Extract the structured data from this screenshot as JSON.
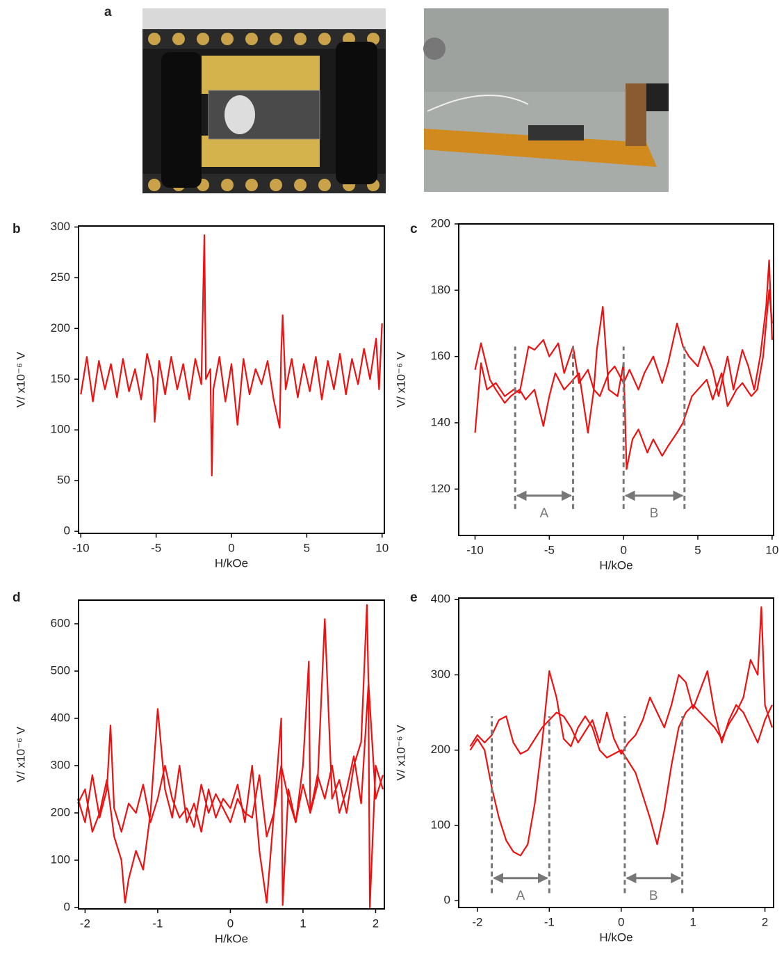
{
  "photos": {
    "label": "a"
  },
  "chart_data": [
    {
      "type": "line",
      "panel": "b",
      "xlabel": "H/kOe",
      "ylabel": "V/ x10⁻⁶ V",
      "xlim": [
        -10.15,
        10.15
      ],
      "ylim": [
        -2,
        301
      ],
      "xticks": [
        -10,
        -5,
        0,
        5,
        10
      ],
      "yticks": [
        0,
        50,
        100,
        150,
        200,
        250,
        300
      ],
      "series": [
        {
          "color": "#ee1111",
          "x": [
            -10,
            -9.6,
            -9.2,
            -8.8,
            -8.4,
            -8,
            -7.6,
            -7.2,
            -6.8,
            -6.4,
            -6,
            -5.6,
            -5.2,
            -5.1,
            -4.8,
            -4.4,
            -4,
            -3.6,
            -3.2,
            -2.8,
            -2.4,
            -2,
            -1.8,
            -1.7,
            -1.4,
            -1.3,
            -1.2,
            -0.8,
            -0.4,
            0,
            0.4,
            0.8,
            1.2,
            1.6,
            2,
            2.4,
            2.8,
            3.2,
            3.3,
            3.4,
            3.6,
            4,
            4.4,
            4.8,
            5.2,
            5.6,
            6,
            6.4,
            6.8,
            7.2,
            7.6,
            8,
            8.4,
            8.8,
            9.2,
            9.6,
            9.8,
            10
          ],
          "values": [
            135,
            172,
            128,
            168,
            140,
            165,
            132,
            170,
            138,
            160,
            130,
            175,
            150,
            108,
            168,
            135,
            172,
            140,
            165,
            130,
            170,
            145,
            292,
            150,
            160,
            55,
            140,
            172,
            128,
            165,
            105,
            170,
            135,
            160,
            145,
            168,
            130,
            102,
            175,
            213,
            140,
            170,
            132,
            165,
            138,
            172,
            130,
            168,
            140,
            175,
            135,
            170,
            145,
            180,
            150,
            190,
            140,
            205
          ]
        }
      ]
    },
    {
      "type": "line",
      "panel": "c",
      "xlabel": "H/kOe",
      "ylabel": "V/ x10⁻⁶ V",
      "xlim": [
        -11.1,
        10.1
      ],
      "ylim": [
        106,
        200
      ],
      "xticks": [
        -10,
        -5,
        0,
        5,
        10
      ],
      "yticks": [
        120,
        140,
        160,
        180,
        200
      ],
      "annotation_color": "#777777",
      "annotation_span": [
        114,
        163
      ],
      "annotation_arrow_y": 118,
      "annotations": [
        {
          "label": "A",
          "x": [
            -7.3,
            -3.4
          ]
        },
        {
          "label": "B",
          "x": [
            0,
            4.1
          ]
        }
      ],
      "series": [
        {
          "color": "#ee1111",
          "x": [
            -10,
            -9.6,
            -9.2,
            -8.6,
            -8,
            -7.4,
            -7,
            -6.4,
            -6,
            -5.4,
            -5,
            -4.4,
            -4,
            -3.4,
            -3,
            -2.4,
            -2,
            -1.8,
            -1.4,
            -1,
            -0.4,
            0,
            0.2,
            0.6,
            1,
            1.6,
            2,
            2.6,
            3,
            3.6,
            4,
            4.6,
            5,
            5.6,
            6,
            6.6,
            7,
            7.6,
            8,
            8.6,
            9,
            9.4,
            9.8,
            10
          ],
          "values": [
            137,
            158,
            150,
            152,
            148,
            150,
            149,
            163,
            162,
            165,
            160,
            164,
            155,
            163,
            152,
            156,
            150,
            162,
            175,
            150,
            148,
            158,
            126,
            135,
            138,
            131,
            135,
            130,
            133,
            137,
            140,
            148,
            150,
            153,
            147,
            155,
            145,
            150,
            152,
            148,
            150,
            160,
            180,
            170
          ]
        },
        {
          "color": "#ee1111",
          "x": [
            10,
            9.8,
            9.6,
            9.2,
            8.8,
            8.4,
            8,
            7.4,
            7,
            6.4,
            6,
            5.4,
            5,
            4.4,
            4,
            3.6,
            3,
            2.6,
            2,
            1.4,
            1,
            0.4,
            0,
            -0.6,
            -1,
            -1.6,
            -2,
            -2.4,
            -3,
            -3.6,
            -4,
            -4.6,
            -5,
            -5.4,
            -6,
            -6.6,
            -7,
            -7.6,
            -8,
            -8.6,
            -9,
            -9.6,
            -10
          ],
          "values": [
            165,
            189,
            175,
            160,
            150,
            157,
            162,
            150,
            160,
            148,
            156,
            163,
            157,
            160,
            163,
            170,
            158,
            152,
            160,
            155,
            150,
            156,
            152,
            157,
            155,
            148,
            150,
            137,
            155,
            152,
            150,
            155,
            148,
            139,
            150,
            147,
            150,
            148,
            146,
            150,
            153,
            164,
            156
          ]
        }
      ]
    },
    {
      "type": "line",
      "panel": "d",
      "xlabel": "H/kOe",
      "ylabel": "V/ x10⁻⁶ V",
      "xlim": [
        -2.09,
        2.12
      ],
      "ylim": [
        -3,
        650
      ],
      "xticks": [
        -2,
        -1,
        0,
        1,
        2
      ],
      "yticks": [
        0,
        100,
        200,
        300,
        400,
        500,
        600
      ],
      "series": [
        {
          "color": "#ee1111",
          "x": [
            -2.1,
            -2,
            -1.9,
            -1.8,
            -1.7,
            -1.6,
            -1.5,
            -1.45,
            -1.4,
            -1.3,
            -1.2,
            -1.1,
            -1,
            -0.9,
            -0.8,
            -0.7,
            -0.6,
            -0.5,
            -0.4,
            -0.3,
            -0.2,
            -0.1,
            0,
            0.1,
            0.2,
            0.3,
            0.4,
            0.5,
            0.6,
            0.7,
            0.72,
            0.8,
            0.9,
            1,
            1.08,
            1.1,
            1.2,
            1.3,
            1.4,
            1.5,
            1.6,
            1.7,
            1.8,
            1.88,
            1.9,
            2,
            2.1
          ],
          "values": [
            220,
            250,
            160,
            200,
            270,
            150,
            100,
            10,
            60,
            120,
            80,
            200,
            420,
            250,
            190,
            300,
            180,
            220,
            160,
            250,
            190,
            230,
            210,
            260,
            180,
            300,
            120,
            10,
            200,
            400,
            5,
            250,
            180,
            300,
            520,
            200,
            260,
            610,
            230,
            270,
            200,
            300,
            350,
            640,
            480,
            230,
            280
          ]
        },
        {
          "color": "#ee1111",
          "x": [
            2.1,
            2,
            1.92,
            1.9,
            1.8,
            1.7,
            1.6,
            1.5,
            1.4,
            1.3,
            1.2,
            1.1,
            1,
            0.9,
            0.8,
            0.7,
            0.6,
            0.5,
            0.4,
            0.3,
            0.2,
            0.1,
            0,
            -0.1,
            -0.2,
            -0.3,
            -0.4,
            -0.5,
            -0.6,
            -0.7,
            -0.8,
            -0.9,
            -1,
            -1.1,
            -1.2,
            -1.3,
            -1.4,
            -1.5,
            -1.6,
            -1.65,
            -1.7,
            -1.8,
            -1.9,
            -2,
            -2.1
          ],
          "values": [
            250,
            300,
            0,
            470,
            220,
            320,
            250,
            200,
            300,
            230,
            280,
            200,
            260,
            180,
            230,
            300,
            200,
            150,
            280,
            190,
            200,
            230,
            180,
            210,
            240,
            200,
            260,
            170,
            210,
            190,
            230,
            300,
            230,
            180,
            260,
            200,
            220,
            160,
            210,
            385,
            250,
            190,
            280,
            180,
            230
          ]
        }
      ]
    },
    {
      "type": "line",
      "panel": "e",
      "xlabel": "H/kOe",
      "ylabel": "V/ x10⁻⁶ V",
      "xlim": [
        -2.26,
        2.12
      ],
      "ylim": [
        -9,
        402
      ],
      "xticks": [
        -2,
        -1,
        0,
        1,
        2
      ],
      "yticks": [
        0,
        100,
        200,
        300,
        400
      ],
      "annotation_color": "#777777",
      "annotation_span": [
        10,
        245
      ],
      "annotation_arrow_y": 30,
      "annotations": [
        {
          "label": "A",
          "x": [
            -1.8,
            -1.0
          ]
        },
        {
          "label": "B",
          "x": [
            0.05,
            0.85
          ]
        }
      ],
      "series": [
        {
          "color": "#ee1111",
          "x": [
            -2.1,
            -2,
            -1.9,
            -1.8,
            -1.7,
            -1.6,
            -1.5,
            -1.4,
            -1.3,
            -1.2,
            -1.1,
            -1,
            -0.9,
            -0.8,
            -0.7,
            -0.6,
            -0.5,
            -0.4,
            -0.3,
            -0.2,
            -0.1,
            0,
            0.1,
            0.2,
            0.3,
            0.4,
            0.5,
            0.6,
            0.7,
            0.8,
            0.9,
            1,
            1.1,
            1.2,
            1.3,
            1.4,
            1.5,
            1.6,
            1.7,
            1.8,
            1.9,
            1.95,
            2,
            2.1
          ],
          "values": [
            200,
            215,
            200,
            150,
            110,
            80,
            65,
            60,
            75,
            130,
            210,
            305,
            270,
            215,
            205,
            230,
            245,
            230,
            200,
            190,
            195,
            200,
            185,
            170,
            140,
            110,
            75,
            120,
            180,
            230,
            250,
            260,
            250,
            240,
            230,
            215,
            235,
            250,
            270,
            320,
            300,
            390,
            260,
            230
          ]
        },
        {
          "color": "#ee1111",
          "x": [
            2.1,
            2,
            1.9,
            1.8,
            1.7,
            1.6,
            1.5,
            1.4,
            1.3,
            1.2,
            1.1,
            1,
            0.9,
            0.8,
            0.7,
            0.6,
            0.5,
            0.4,
            0.3,
            0.2,
            0.1,
            0,
            -0.1,
            -0.2,
            -0.3,
            -0.4,
            -0.5,
            -0.6,
            -0.7,
            -0.8,
            -0.9,
            -1,
            -1.1,
            -1.2,
            -1.3,
            -1.4,
            -1.5,
            -1.6,
            -1.7,
            -1.8,
            -1.9,
            -2,
            -2.1
          ],
          "values": [
            260,
            240,
            210,
            230,
            250,
            260,
            240,
            210,
            250,
            305,
            280,
            255,
            290,
            300,
            260,
            230,
            250,
            270,
            240,
            220,
            210,
            195,
            215,
            250,
            210,
            240,
            225,
            210,
            230,
            245,
            250,
            240,
            230,
            215,
            200,
            195,
            210,
            245,
            240,
            220,
            210,
            220,
            205
          ]
        }
      ]
    }
  ]
}
